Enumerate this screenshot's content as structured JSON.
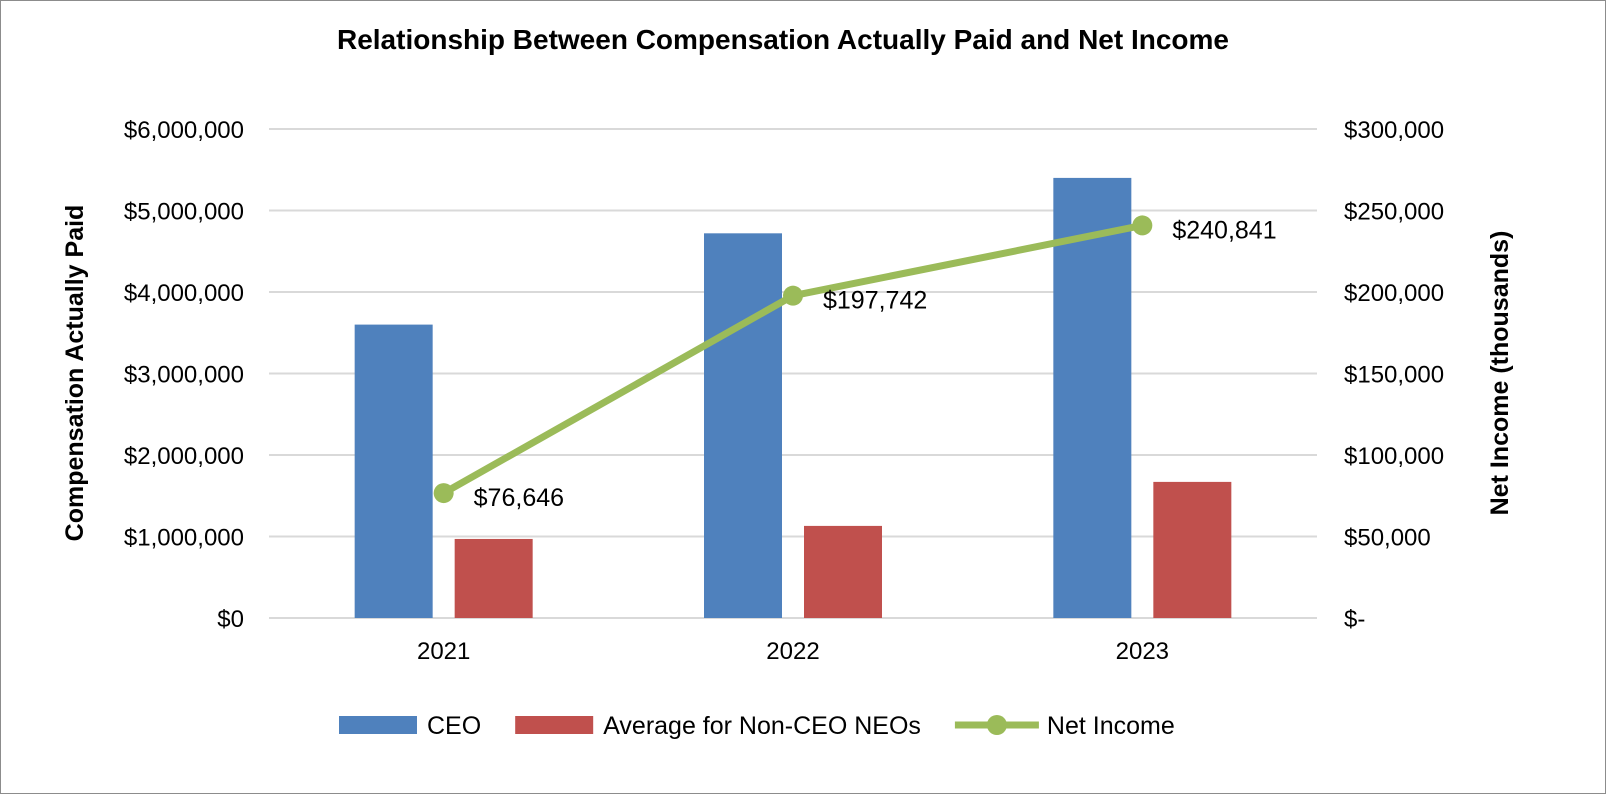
{
  "chart_data": {
    "type": "bar",
    "title": "Relationship Between Compensation Actually Paid and Net Income",
    "categories": [
      "2021",
      "2022",
      "2023"
    ],
    "series": [
      {
        "name": "CEO",
        "type": "bar",
        "axis": "left",
        "color": "#4f81bd",
        "values": [
          3600000,
          4720000,
          5400000
        ]
      },
      {
        "name": "Average for Non-CEO NEOs",
        "type": "bar",
        "axis": "left",
        "color": "#c0504d",
        "values": [
          970000,
          1130000,
          1670000
        ]
      },
      {
        "name": "Net Income",
        "type": "line",
        "axis": "right",
        "color": "#9bbb59",
        "values": [
          76646,
          197742,
          240841
        ],
        "data_labels": [
          "$76,646",
          "$197,742",
          "$240,841"
        ]
      }
    ],
    "ylabel": "Compensation Actually Paid",
    "y2label": "Net Income (thousands)",
    "ylim": [
      0,
      6000000
    ],
    "y2lim": [
      0,
      300000
    ],
    "yticks": [
      0,
      1000000,
      2000000,
      3000000,
      4000000,
      5000000,
      6000000
    ],
    "ytick_labels": [
      "$0",
      "$1,000,000",
      "$2,000,000",
      "$3,000,000",
      "$4,000,000",
      "$5,000,000",
      "$6,000,000"
    ],
    "y2tick_labels": [
      "$-",
      "$50,000",
      "$100,000",
      "$150,000",
      "$200,000",
      "$250,000",
      "$300,000"
    ],
    "grid": true,
    "legend_position": "bottom"
  }
}
